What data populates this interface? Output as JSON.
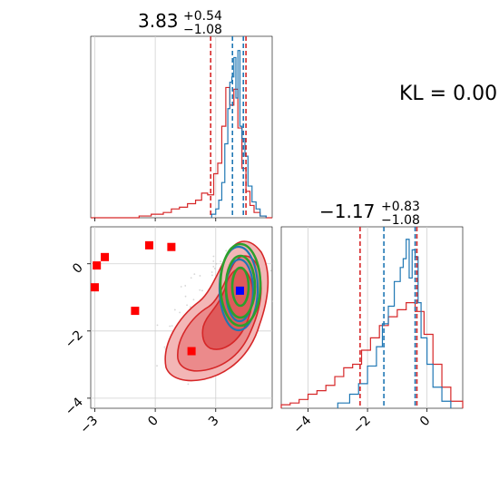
{
  "figure": {
    "kl_label": "KL = 0.00"
  },
  "chart_data": [
    {
      "type": "histogram",
      "panel": "marginal-1",
      "title_main": "3.83",
      "title_sup": "+0.54",
      "title_sub": "−1.08",
      "xlim": [
        -3.2,
        5.8
      ],
      "ylim": [
        0,
        1
      ],
      "grid": true,
      "series": [
        {
          "color": "#d62728",
          "bins": [
            -3.2,
            -2.6,
            -2.0,
            -1.4,
            -0.8,
            -0.2,
            0.4,
            0.8,
            1.2,
            1.6,
            2.0,
            2.3,
            2.6,
            2.9,
            3.1,
            3.3,
            3.5,
            3.7,
            3.9,
            4.1,
            4.3,
            4.5,
            4.7,
            4.9,
            5.2,
            5.5,
            5.8
          ],
          "heights": [
            0,
            0,
            0,
            0,
            0.01,
            0.02,
            0.03,
            0.05,
            0.06,
            0.08,
            0.1,
            0.14,
            0.13,
            0.25,
            0.31,
            0.52,
            0.74,
            0.64,
            0.73,
            0.51,
            0.28,
            0.15,
            0.07,
            0.03,
            0.01,
            0
          ]
        },
        {
          "color": "#1f77b4",
          "bins": [
            2.8,
            3.0,
            3.15,
            3.3,
            3.45,
            3.6,
            3.7,
            3.8,
            3.9,
            4.0,
            4.1,
            4.2,
            4.3,
            4.45,
            4.6,
            4.8,
            5.0,
            5.2,
            5.5
          ],
          "heights": [
            0.02,
            0.05,
            0.1,
            0.2,
            0.42,
            0.62,
            0.77,
            0.8,
            0.91,
            0.68,
            0.95,
            0.52,
            0.45,
            0.35,
            0.18,
            0.09,
            0.05,
            0.01
          ]
        }
      ],
      "vlines": [
        {
          "x": 2.75,
          "color": "#d62728"
        },
        {
          "x": 3.83,
          "color": "#1f77b4"
        },
        {
          "x": 4.37,
          "color": "#1f77b4"
        },
        {
          "x": 4.5,
          "color": "#d62728"
        }
      ]
    },
    {
      "type": "contour",
      "panel": "joint",
      "xlim": [
        -3.2,
        5.8
      ],
      "ylim": [
        -4.3,
        1.1
      ],
      "xticks": [
        -3,
        0,
        3
      ],
      "yticks": [
        0,
        -2,
        -4
      ],
      "grid": true,
      "markers": {
        "red_squares": [
          [
            -3.0,
            -0.7
          ],
          [
            -2.9,
            -0.05
          ],
          [
            -2.5,
            0.2
          ],
          [
            -1.0,
            -1.4
          ],
          [
            -0.3,
            0.55
          ],
          [
            0.8,
            0.5
          ],
          [
            1.8,
            -2.6
          ]
        ],
        "blue_square": [
          4.2,
          -0.8
        ]
      },
      "filled_region_color": "#d62728",
      "contour_colors": [
        "#d62728",
        "#1f77b4",
        "#2ca02c"
      ]
    },
    {
      "type": "histogram",
      "panel": "marginal-2",
      "title_main": "−1.17",
      "title_sup": "+0.83",
      "title_sub": "−1.08",
      "xlim": [
        -4.9,
        1.2
      ],
      "ylim": [
        0,
        1
      ],
      "xticks": [
        -4,
        -2,
        0
      ],
      "grid": true,
      "series": [
        {
          "color": "#d62728",
          "bins": [
            -4.9,
            -4.6,
            -4.3,
            -4.0,
            -3.7,
            -3.4,
            -3.1,
            -2.8,
            -2.5,
            -2.2,
            -1.9,
            -1.6,
            -1.3,
            -1.0,
            -0.7,
            -0.4,
            -0.1,
            0.2,
            0.5,
            0.8,
            1.2
          ],
          "heights": [
            0.02,
            0.03,
            0.05,
            0.08,
            0.1,
            0.13,
            0.18,
            0.23,
            0.25,
            0.33,
            0.4,
            0.47,
            0.52,
            0.56,
            0.6,
            0.55,
            0.42,
            0.25,
            0.12,
            0.04
          ]
        },
        {
          "color": "#1f77b4",
          "bins": [
            -3.0,
            -2.6,
            -2.3,
            -2.0,
            -1.7,
            -1.5,
            -1.3,
            -1.1,
            -0.9,
            -0.8,
            -0.7,
            -0.6,
            -0.5,
            -0.4,
            -0.3,
            -0.2,
            0.0,
            0.2,
            0.5,
            0.8
          ],
          "heights": [
            0.03,
            0.08,
            0.14,
            0.24,
            0.35,
            0.48,
            0.58,
            0.72,
            0.8,
            0.85,
            0.96,
            0.74,
            0.9,
            0.86,
            0.6,
            0.4,
            0.25,
            0.12,
            0.04
          ]
        }
      ],
      "vlines": [
        {
          "x": -2.25,
          "color": "#d62728"
        },
        {
          "x": -1.45,
          "color": "#1f77b4"
        },
        {
          "x": -0.4,
          "color": "#1f77b4"
        },
        {
          "x": -0.34,
          "color": "#d62728"
        }
      ]
    }
  ]
}
